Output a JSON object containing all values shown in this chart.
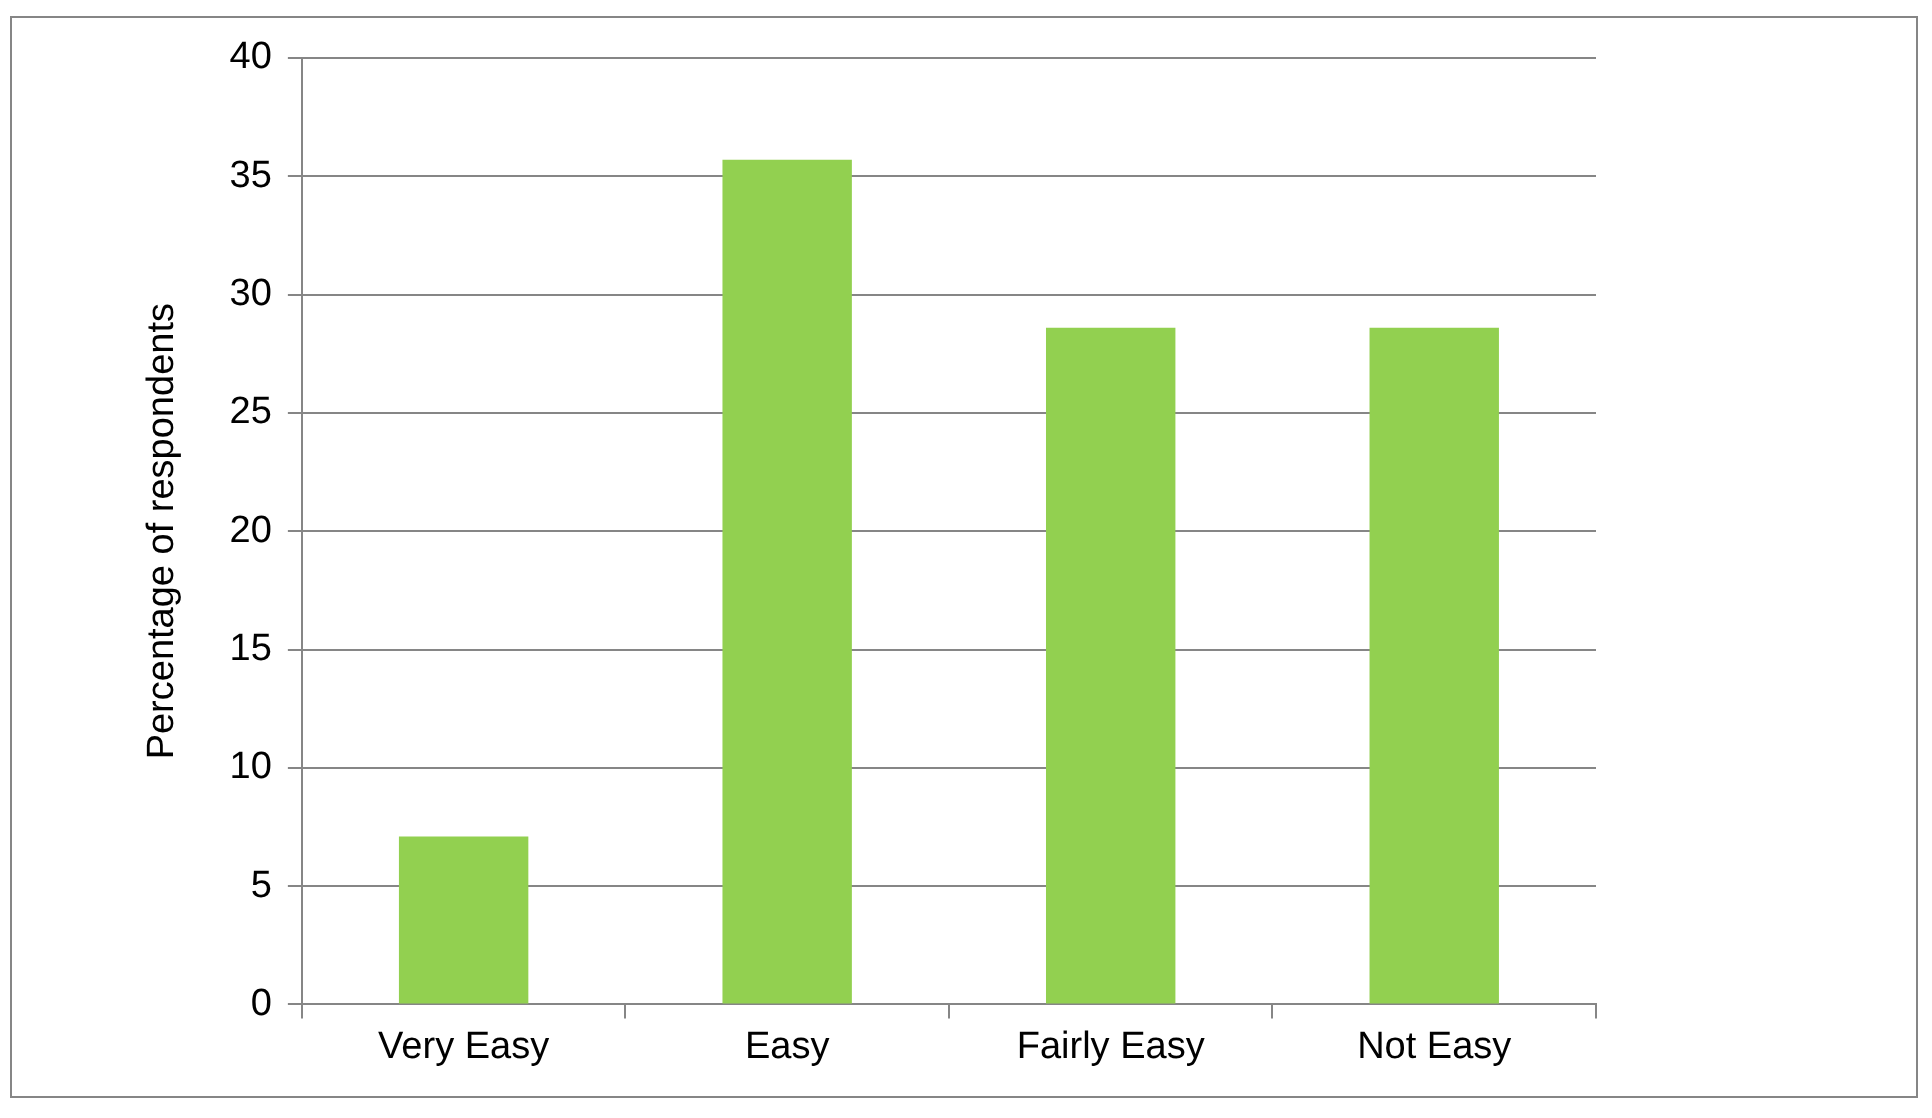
{
  "chart_data": {
    "type": "bar",
    "ylabel": "Percentage of respondents",
    "categories": [
      "Very Easy",
      "Easy",
      "Fairly Easy",
      "Not Easy"
    ],
    "values": [
      7.1,
      35.7,
      28.6,
      28.6
    ],
    "color": "#92d050",
    "ylim": [
      0,
      40
    ],
    "yticks": [
      0,
      5,
      10,
      15,
      20,
      25,
      30,
      35,
      40
    ],
    "grid": "y"
  }
}
